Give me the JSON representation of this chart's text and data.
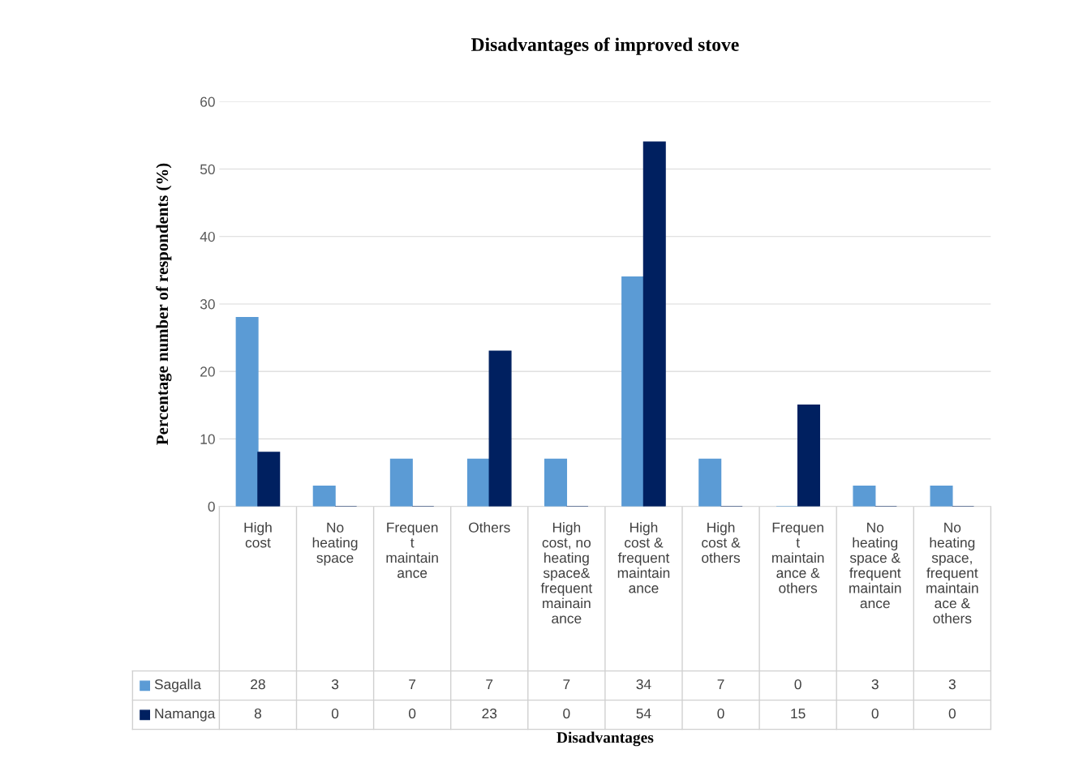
{
  "chart_data": {
    "type": "bar",
    "title": "Disadvantages of improved stove",
    "annotations": [
      "Disadvantages"
    ],
    "ylabel": "Percentage number of respondents (%)",
    "categories": [
      "High\ncost",
      "No\nheating\nspace",
      "Frequen\nt\nmaintain\nance",
      "Others",
      "High\ncost, no\nheating\nspace&\nfrequent\nmainain\nance",
      "High\ncost &\nfrequent\nmaintain\nance",
      "High\ncost &\nothers",
      "Frequen\nt\nmaintain\nance &\nothers",
      "No\nheating\nspace &\nfrequent\nmaintain\nance",
      "No\nheating\nspace,\nfrequent\nmaintain\nace &\nothers"
    ],
    "series": [
      {
        "name": "Sagalla",
        "color": "#5b9bd5",
        "values": [
          28,
          3,
          7,
          7,
          7,
          34,
          7,
          0,
          3,
          3
        ]
      },
      {
        "name": "Namanga",
        "color": "#002060",
        "values": [
          8,
          0,
          0,
          23,
          0,
          54,
          0,
          15,
          0,
          0
        ]
      }
    ],
    "ylim": [
      0,
      60
    ],
    "yticks": [
      0,
      10,
      20,
      30,
      40,
      50,
      60
    ],
    "grid": "y",
    "legend": "bottom",
    "data_labels": true
  }
}
